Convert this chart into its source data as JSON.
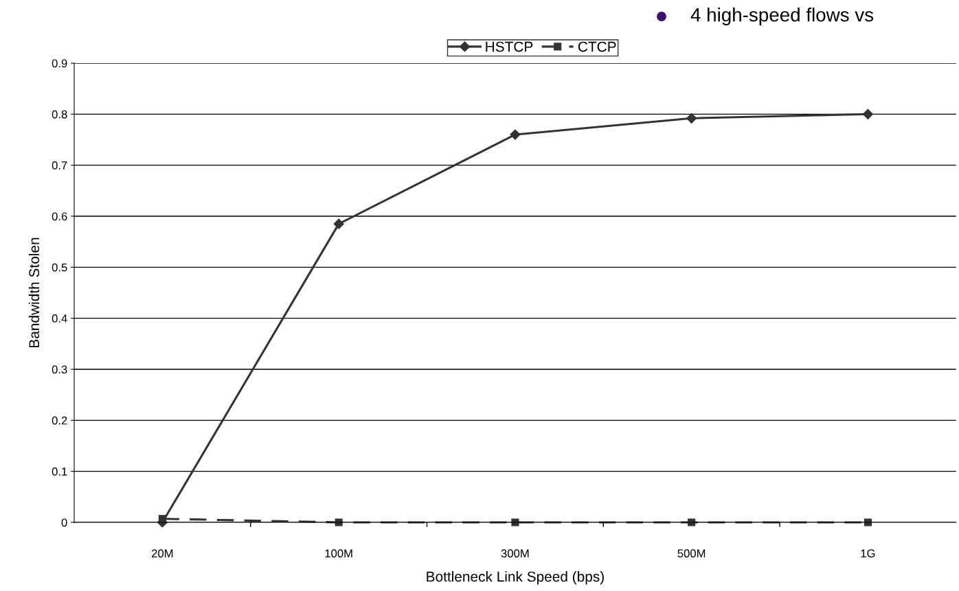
{
  "chart_data": {
    "type": "line",
    "xlabel": "Bottleneck Link Speed (bps)",
    "ylabel": "Bandwidth Stolen",
    "categories": [
      "20M",
      "100M",
      "300M",
      "500M",
      "1G"
    ],
    "series": [
      {
        "name": "HSTCP",
        "color": "#333333",
        "values": [
          0,
          0.585,
          0.76,
          0.792,
          0.8
        ],
        "marker": "diamond",
        "line_style": "solid"
      },
      {
        "name": "CTCP",
        "color": "#333333",
        "values": [
          0.007,
          0,
          0,
          0,
          0
        ],
        "marker": "square",
        "line_style": "dashed"
      }
    ],
    "ylim": [
      0,
      0.9
    ],
    "yticks": [
      0,
      0.1,
      0.2,
      0.3,
      0.4,
      0.5,
      0.6,
      0.7,
      0.8,
      0.9
    ],
    "grid": "y",
    "legend": "top",
    "annotations": [
      "4 high-speed flows vs"
    ]
  }
}
